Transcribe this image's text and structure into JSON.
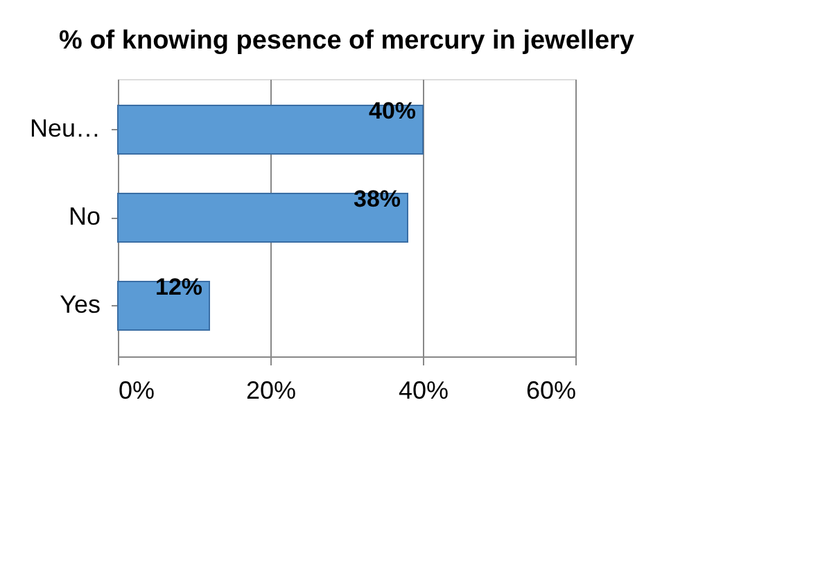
{
  "chart_data": {
    "type": "bar",
    "orientation": "horizontal",
    "title": "% of knowing pesence of mercury in jewellery",
    "categories": [
      "Neu…",
      "No",
      "Yes"
    ],
    "values": [
      40,
      38,
      12
    ],
    "value_labels": [
      "40%",
      "38%",
      "12%"
    ],
    "color": "#5b9bd5",
    "xlim": [
      0,
      60
    ],
    "xticks": [
      {
        "value": 0,
        "label": "0%"
      },
      {
        "value": 20,
        "label": "20%"
      },
      {
        "value": 40,
        "label": "40%"
      },
      {
        "value": 60,
        "label": "60%"
      }
    ],
    "grid": "x"
  }
}
